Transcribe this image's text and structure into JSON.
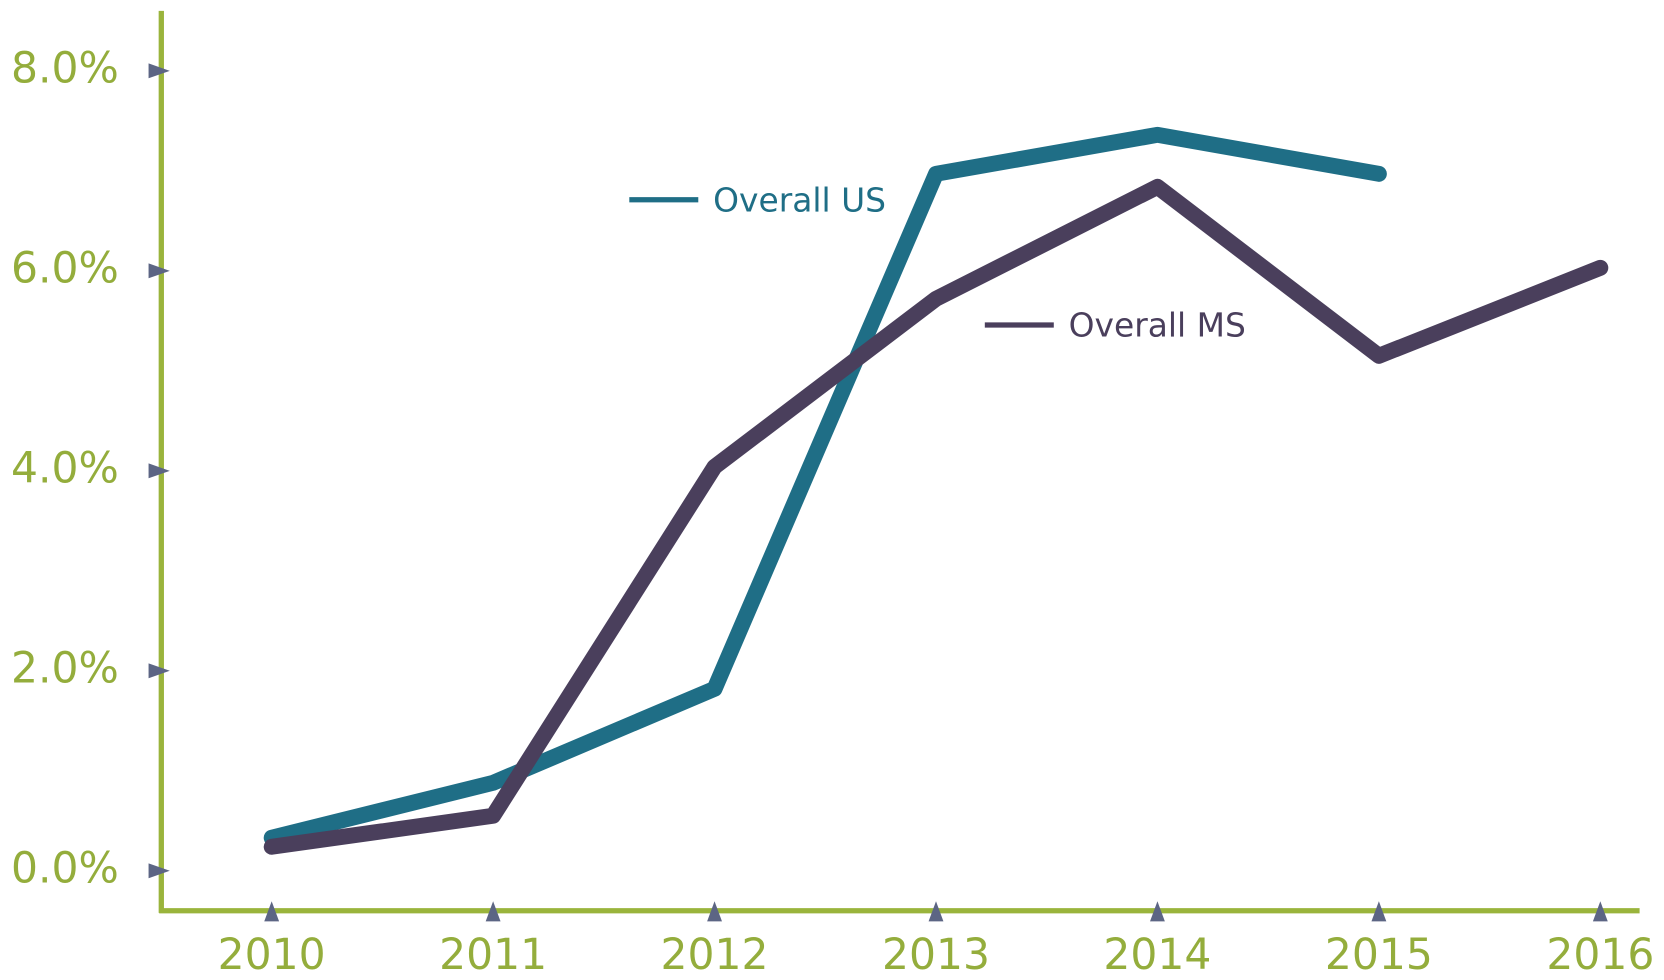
{
  "chart_data": {
    "type": "line",
    "categories": [
      "2010",
      "2011",
      "2012",
      "2013",
      "2014",
      "2015",
      "2016"
    ],
    "series": [
      {
        "name": "Overall US",
        "color": "#1f6e86",
        "values": [
          0.33,
          0.88,
          1.82,
          6.97,
          7.36,
          6.97,
          null
        ]
      },
      {
        "name": "Overall MS",
        "color": "#4a3f5c",
        "values": [
          0.24,
          0.55,
          4.04,
          5.72,
          6.84,
          5.15,
          6.03
        ]
      }
    ],
    "ylim": [
      -0.4,
      8.6
    ],
    "yticks": [
      {
        "value": 0,
        "label": "0.0%"
      },
      {
        "value": 2,
        "label": "2.0%"
      },
      {
        "value": 4,
        "label": "4.0%"
      },
      {
        "value": 6,
        "label": "6.0%"
      },
      {
        "value": 8,
        "label": "8.0%"
      }
    ],
    "axis_color": "#9ab43c",
    "marker_color": "#5c6584"
  }
}
